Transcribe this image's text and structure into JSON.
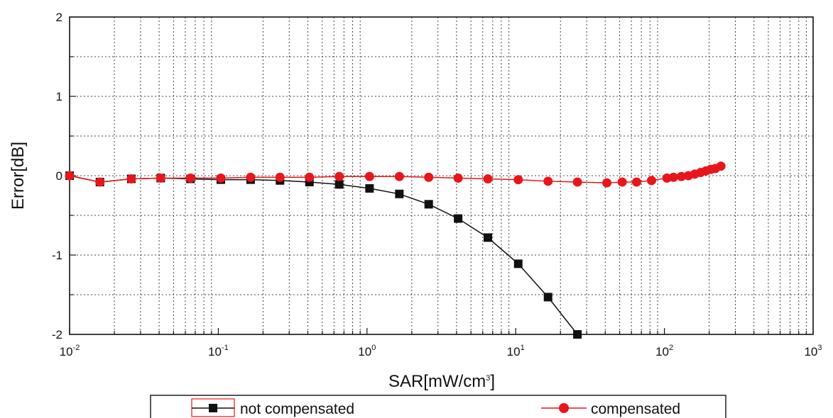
{
  "chart_data": {
    "type": "line",
    "title": "",
    "xlabel": "SAR[mW/cm",
    "xlabel_sup": "3",
    "xlabel_end": "]",
    "ylabel": "Error[dB]",
    "xscale": "log",
    "xlim": [
      0.01,
      1000
    ],
    "ylim": [
      -2,
      2
    ],
    "grid": true,
    "legend_position": "bottom",
    "x_ticks": [
      {
        "value": 0.01,
        "base": "10",
        "exp": "-2"
      },
      {
        "value": 0.1,
        "base": "10",
        "exp": "-1"
      },
      {
        "value": 1,
        "base": "10",
        "exp": "0"
      },
      {
        "value": 10,
        "base": "10",
        "exp": "1"
      },
      {
        "value": 100,
        "base": "10",
        "exp": "2"
      },
      {
        "value": 1000,
        "base": "10",
        "exp": "3"
      }
    ],
    "y_ticks": [
      {
        "value": 2,
        "label": "2"
      },
      {
        "value": 1,
        "label": "1"
      },
      {
        "value": 0,
        "label": "0"
      },
      {
        "value": -1,
        "label": "-1"
      },
      {
        "value": -2,
        "label": "-2"
      }
    ],
    "series": [
      {
        "name": "not compensated",
        "color": "#111111",
        "marker": "square",
        "x": [
          0.01,
          0.016,
          0.026,
          0.041,
          0.065,
          0.104,
          0.165,
          0.26,
          0.41,
          0.65,
          1.04,
          1.65,
          2.6,
          4.1,
          6.5,
          10.4,
          16.5,
          26
        ],
        "y": [
          0.0,
          -0.08,
          -0.04,
          -0.03,
          -0.04,
          -0.05,
          -0.05,
          -0.06,
          -0.08,
          -0.11,
          -0.16,
          -0.23,
          -0.36,
          -0.54,
          -0.78,
          -1.11,
          -1.53,
          -2.0
        ]
      },
      {
        "name": "compensated",
        "color": "#e8161b",
        "marker": "circle",
        "x": [
          0.01,
          0.016,
          0.026,
          0.041,
          0.065,
          0.104,
          0.165,
          0.26,
          0.41,
          0.65,
          1.04,
          1.65,
          2.6,
          4.1,
          6.5,
          10.4,
          16.5,
          26,
          41,
          52,
          65,
          82,
          104,
          115,
          130,
          145,
          160,
          175,
          190,
          205,
          220,
          240
        ],
        "y": [
          0.0,
          -0.08,
          -0.04,
          -0.03,
          -0.03,
          -0.03,
          -0.02,
          -0.02,
          -0.02,
          -0.01,
          -0.01,
          -0.01,
          -0.02,
          -0.03,
          -0.04,
          -0.05,
          -0.07,
          -0.08,
          -0.09,
          -0.08,
          -0.08,
          -0.06,
          -0.03,
          -0.02,
          -0.01,
          0.0,
          0.02,
          0.04,
          0.06,
          0.08,
          0.09,
          0.12
        ]
      }
    ]
  }
}
